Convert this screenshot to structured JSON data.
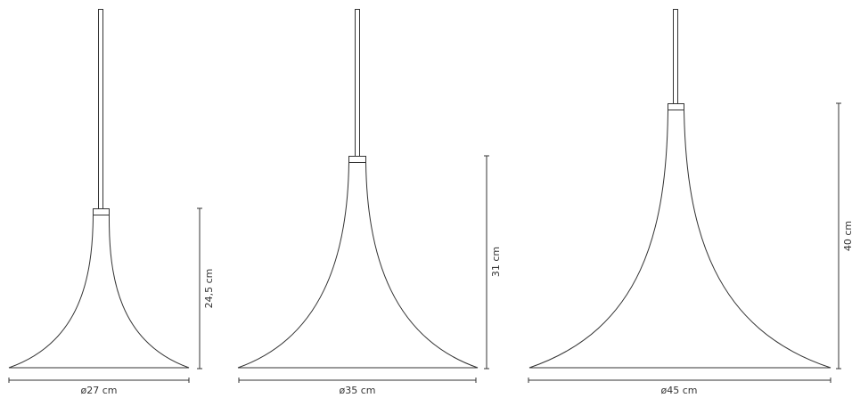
{
  "lamps": [
    {
      "diameter_label": "ø27 cm",
      "height_label": "24,5 cm"
    },
    {
      "diameter_label": "ø35 cm",
      "height_label": "31 cm"
    },
    {
      "diameter_label": "ø45 cm",
      "height_label": "40 cm"
    }
  ],
  "colors": {
    "line": "#333333",
    "background": "#ffffff"
  }
}
